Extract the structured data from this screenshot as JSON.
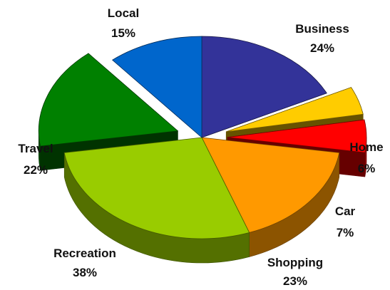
{
  "chart_data": {
    "type": "pie",
    "title": "",
    "slices": [
      {
        "name": "Business",
        "label": "Business",
        "value_label": "24%",
        "value": 24,
        "color": "#333399",
        "exploded": false
      },
      {
        "name": "Home",
        "label": "Home",
        "value_label": "6%",
        "value": 6,
        "color": "#FFCC00",
        "exploded": true
      },
      {
        "name": "Car",
        "label": "Car",
        "value_label": "7%",
        "value": 7,
        "color": "#FF0000",
        "exploded": true
      },
      {
        "name": "Shopping",
        "label": "Shopping",
        "value_label": "23%",
        "value": 23,
        "color": "#FF9900",
        "exploded": false
      },
      {
        "name": "Recreation",
        "label": "Recreation",
        "value_label": "38%",
        "value": 38,
        "color": "#99CC00",
        "exploded": false
      },
      {
        "name": "Travel",
        "label": "Travel",
        "value_label": "22%",
        "value": 22,
        "color": "#008000",
        "exploded": true
      },
      {
        "name": "Local",
        "label": "Local",
        "value_label": "15%",
        "value": 15,
        "color": "#0066CC",
        "exploded": false
      }
    ],
    "legend": "none",
    "style": "3d-exploded"
  }
}
